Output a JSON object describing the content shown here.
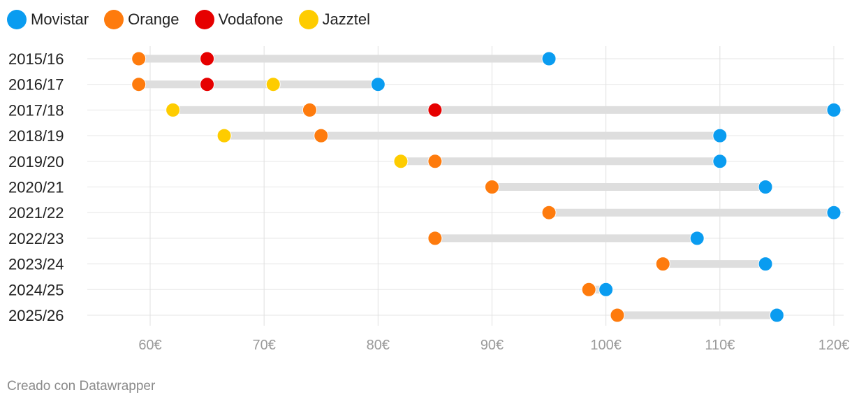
{
  "chart_data": {
    "type": "dot-range",
    "legend": [
      {
        "name": "Movistar",
        "color": "#0a9cf0"
      },
      {
        "name": "Orange",
        "color": "#fe7b0d"
      },
      {
        "name": "Vodafone",
        "color": "#e60000"
      },
      {
        "name": "Jazztel",
        "color": "#fecc00"
      }
    ],
    "xlim": [
      55,
      121
    ],
    "xticks": [
      60,
      70,
      80,
      90,
      100,
      110,
      120
    ],
    "tick_suffix": "€",
    "rows": [
      {
        "label": "2015/16",
        "points": [
          {
            "series": "Orange",
            "value": 59
          },
          {
            "series": "Vodafone",
            "value": 65
          },
          {
            "series": "Movistar",
            "value": 95
          }
        ]
      },
      {
        "label": "2016/17",
        "points": [
          {
            "series": "Orange",
            "value": 59
          },
          {
            "series": "Vodafone",
            "value": 65
          },
          {
            "series": "Jazztel",
            "value": 70.8
          },
          {
            "series": "Movistar",
            "value": 80
          }
        ]
      },
      {
        "label": "2017/18",
        "points": [
          {
            "series": "Jazztel",
            "value": 62
          },
          {
            "series": "Orange",
            "value": 74
          },
          {
            "series": "Vodafone",
            "value": 85
          },
          {
            "series": "Movistar",
            "value": 120
          }
        ]
      },
      {
        "label": "2018/19",
        "points": [
          {
            "series": "Jazztel",
            "value": 66.5
          },
          {
            "series": "Orange",
            "value": 75
          },
          {
            "series": "Movistar",
            "value": 110
          }
        ]
      },
      {
        "label": "2019/20",
        "points": [
          {
            "series": "Jazztel",
            "value": 82
          },
          {
            "series": "Orange",
            "value": 85
          },
          {
            "series": "Movistar",
            "value": 110
          }
        ]
      },
      {
        "label": "2020/21",
        "points": [
          {
            "series": "Orange",
            "value": 90
          },
          {
            "series": "Movistar",
            "value": 114
          }
        ]
      },
      {
        "label": "2021/22",
        "points": [
          {
            "series": "Orange",
            "value": 95
          },
          {
            "series": "Movistar",
            "value": 120
          }
        ]
      },
      {
        "label": "2022/23",
        "points": [
          {
            "series": "Orange",
            "value": 85
          },
          {
            "series": "Movistar",
            "value": 108
          }
        ]
      },
      {
        "label": "2023/24",
        "points": [
          {
            "series": "Orange",
            "value": 105
          },
          {
            "series": "Movistar",
            "value": 114
          }
        ]
      },
      {
        "label": "2024/25",
        "points": [
          {
            "series": "Orange",
            "value": 98.5
          },
          {
            "series": "Movistar",
            "value": 100
          }
        ]
      },
      {
        "label": "2025/26",
        "points": [
          {
            "series": "Orange",
            "value": 101
          },
          {
            "series": "Movistar",
            "value": 115
          }
        ]
      }
    ]
  },
  "footer": {
    "credit": "Creado con Datawrapper"
  }
}
